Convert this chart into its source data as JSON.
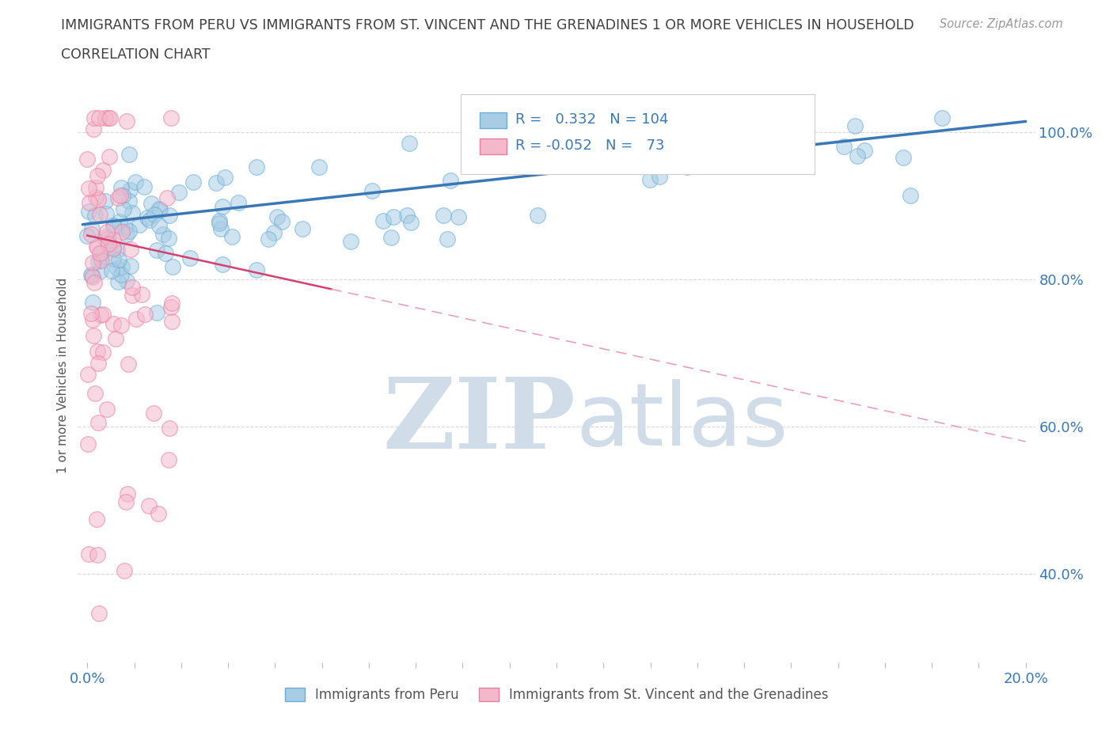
{
  "title_line1": "IMMIGRANTS FROM PERU VS IMMIGRANTS FROM ST. VINCENT AND THE GRENADINES 1 OR MORE VEHICLES IN HOUSEHOLD",
  "title_line2": "CORRELATION CHART",
  "source_text": "Source: ZipAtlas.com",
  "ylabel": "1 or more Vehicles in Household",
  "xlim": [
    -0.002,
    0.202
  ],
  "ylim": [
    0.28,
    1.06
  ],
  "yticks": [
    0.4,
    0.6,
    0.8,
    1.0
  ],
  "yticklabels_right": [
    "40.0%",
    "60.0%",
    "80.0%",
    "100.0%"
  ],
  "peru_color": "#a8cce4",
  "peru_edge_color": "#6aaed6",
  "stv_color": "#f4b8cb",
  "stv_edge_color": "#e87fa3",
  "peru_R": 0.332,
  "peru_N": 104,
  "stv_R": -0.052,
  "stv_N": 73,
  "trend_peru_color": "#3a78b5",
  "trend_stv_solid_color": "#d44070",
  "trend_stv_dash_color": "#e8a0b8",
  "watermark_zip": "ZIP",
  "watermark_atlas": "atlas",
  "watermark_color": "#d0dde8",
  "background_color": "#ffffff",
  "grid_color": "#d8d8d8",
  "title_color": "#404040",
  "legend_text_color": "#3a78b5",
  "source_color": "#999999"
}
